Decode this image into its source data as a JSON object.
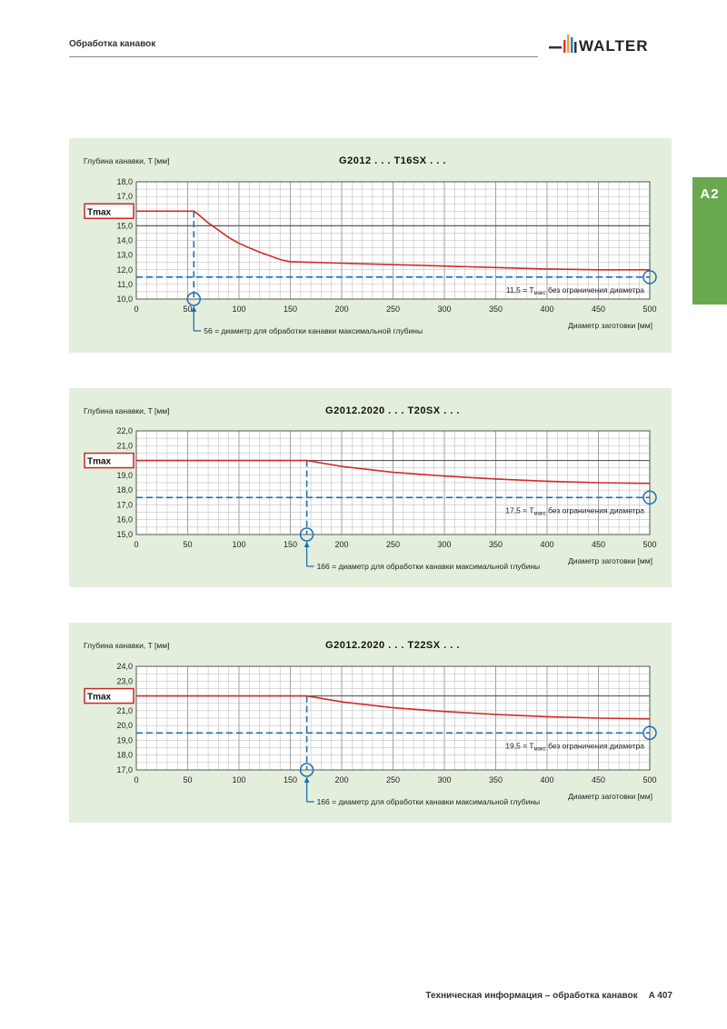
{
  "header": {
    "title": "Обработка канавок",
    "logo_text": "WALTER"
  },
  "side_tab": {
    "label": "A2",
    "color": "#6aa84f"
  },
  "footer": {
    "text": "Техническая информация – обработка канавок",
    "page": "A 407"
  },
  "colors": {
    "panel_bg": "#e3efdc",
    "curve": "#d42a2a",
    "dashed": "#1f6fb0",
    "grid_minor": "#b5b5b5",
    "grid_major": "#5a5a5a"
  },
  "chart_data": [
    {
      "type": "line",
      "title": "G2012 . . . T16SX . . .",
      "ylabel": "Глубина канавки, T [мм]",
      "xlabel": "Диаметр заготовки [мм]",
      "xlim": [
        0,
        500
      ],
      "ylim": [
        10,
        18
      ],
      "x_ticks": [
        "0",
        "50",
        "100",
        "150",
        "200",
        "250",
        "300",
        "350",
        "400",
        "450",
        "500"
      ],
      "y_ticks": [
        "10,0",
        "11,0",
        "12,0",
        "13,0",
        "14,0",
        "15,0",
        "16,0",
        "17,0",
        "18,0"
      ],
      "tmax_label": "Tmax",
      "tmax_value": 16,
      "major_y": 15,
      "series": [
        {
          "x": [
            0,
            56,
            60,
            70,
            80,
            90,
            100,
            110,
            120,
            130,
            140,
            150,
            175,
            200,
            250,
            300,
            350,
            400,
            450,
            500
          ],
          "y": [
            16,
            16,
            15.8,
            15.2,
            14.7,
            14.2,
            13.8,
            13.5,
            13.2,
            12.95,
            12.7,
            12.55,
            12.5,
            12.45,
            12.35,
            12.25,
            12.15,
            12.05,
            12.0,
            12.0
          ]
        }
      ],
      "min_depth": 11.5,
      "diameter": 56,
      "right_note": "11,5 = T",
      "right_note_sub": "макс",
      "right_note_tail": " без ограничения диаметра",
      "bottom_note": "56 = диаметр для обработки канавки максимальной глубины"
    },
    {
      "type": "line",
      "title": "G2012.2020 . . . T20SX . . .",
      "ylabel": "Глубина канавки, T [мм]",
      "xlabel": "Диаметр заготовки [мм]",
      "xlim": [
        0,
        500
      ],
      "ylim": [
        15,
        22
      ],
      "x_ticks": [
        "0",
        "50",
        "100",
        "150",
        "200",
        "250",
        "300",
        "350",
        "400",
        "450",
        "500"
      ],
      "y_ticks": [
        "15,0",
        "16,0",
        "17,0",
        "18,0",
        "19,0",
        "20,0",
        "21,0",
        "22,0"
      ],
      "tmax_label": "Tmax",
      "tmax_value": 20,
      "major_y": 20,
      "series": [
        {
          "x": [
            0,
            166,
            200,
            250,
            300,
            350,
            400,
            450,
            500
          ],
          "y": [
            20,
            20,
            19.6,
            19.2,
            18.95,
            18.75,
            18.6,
            18.5,
            18.45
          ]
        }
      ],
      "min_depth": 17.5,
      "diameter": 166,
      "right_note": "17,5 = T",
      "right_note_sub": "макс",
      "right_note_tail": " без ограничения диаметра",
      "bottom_note": "166 = диаметр для обработки канавки максимальной глубины"
    },
    {
      "type": "line",
      "title": "G2012.2020 . . . T22SX . . .",
      "ylabel": "Глубина канавки, T [мм]",
      "xlabel": "Диаметр заготовки [мм]",
      "xlim": [
        0,
        500
      ],
      "ylim": [
        17,
        24
      ],
      "x_ticks": [
        "0",
        "50",
        "100",
        "150",
        "200",
        "250",
        "300",
        "350",
        "400",
        "450",
        "500"
      ],
      "y_ticks": [
        "17,0",
        "18,0",
        "19,0",
        "20,0",
        "21,0",
        "22,0",
        "23,0",
        "24,0"
      ],
      "tmax_label": "Tmax",
      "tmax_value": 22,
      "major_y": 22,
      "series": [
        {
          "x": [
            0,
            166,
            200,
            250,
            300,
            350,
            400,
            450,
            500
          ],
          "y": [
            22,
            22,
            21.6,
            21.2,
            20.95,
            20.75,
            20.6,
            20.5,
            20.45
          ]
        }
      ],
      "min_depth": 19.5,
      "diameter": 166,
      "right_note": "19,5 = T",
      "right_note_sub": "макс",
      "right_note_tail": " без ограничения диаметра",
      "bottom_note": "166 = диаметр для обработки канавки максимальной глубины"
    }
  ]
}
